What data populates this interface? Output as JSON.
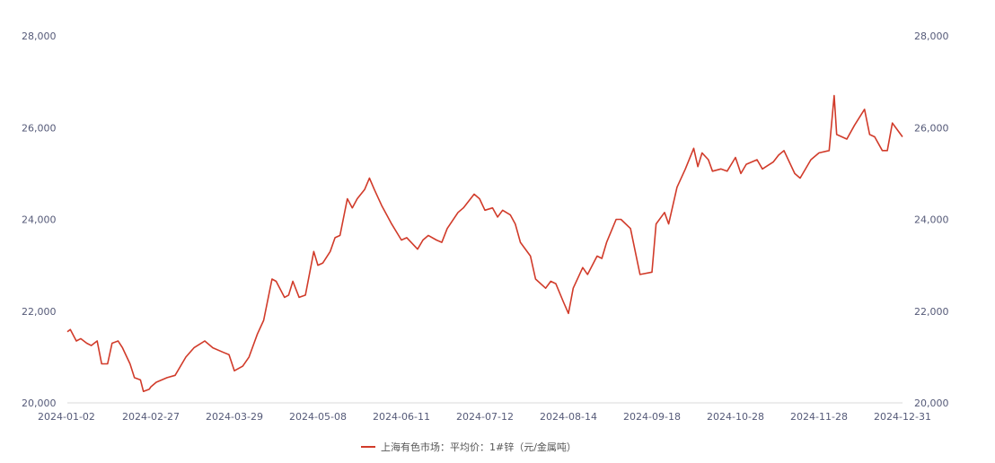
{
  "chart_data": {
    "type": "line",
    "title": "",
    "xlabel": "",
    "ylabel": "",
    "ylim": [
      20000,
      28000
    ],
    "y_ticks": [
      "20,000",
      "22,000",
      "24,000",
      "26,000",
      "28,000"
    ],
    "y2_ticks": [
      "20,000",
      "22,000",
      "24,000",
      "26,000",
      "28,000"
    ],
    "x_ticks": [
      "2024-01-02",
      "2024-02-27",
      "2024-03-29",
      "2024-05-08",
      "2024-06-11",
      "2024-07-12",
      "2024-08-14",
      "2024-09-18",
      "2024-10-28",
      "2024-11-28",
      "2024-12-31"
    ],
    "grid": false,
    "legend_position": "bottom-center",
    "colors": {
      "series": "#d13b2a",
      "axis_text": "#555a78"
    },
    "series": [
      {
        "name": "上海有色市场：平均价：1#锌（元/金属吨）",
        "points": [
          [
            "2024-01-02",
            21550
          ],
          [
            "2024-01-04",
            21600
          ],
          [
            "2024-01-08",
            21350
          ],
          [
            "2024-01-11",
            21400
          ],
          [
            "2024-01-15",
            21300
          ],
          [
            "2024-01-18",
            21250
          ],
          [
            "2024-01-22",
            21350
          ],
          [
            "2024-01-25",
            20850
          ],
          [
            "2024-01-29",
            20850
          ],
          [
            "2024-02-01",
            21300
          ],
          [
            "2024-02-05",
            21350
          ],
          [
            "2024-02-08",
            21200
          ],
          [
            "2024-02-13",
            20850
          ],
          [
            "2024-02-16",
            20550
          ],
          [
            "2024-02-20",
            20500
          ],
          [
            "2024-02-22",
            20250
          ],
          [
            "2024-02-26",
            20300
          ],
          [
            "2024-02-27",
            20350
          ],
          [
            "2024-02-29",
            20450
          ],
          [
            "2024-03-04",
            20550
          ],
          [
            "2024-03-07",
            20600
          ],
          [
            "2024-03-11",
            21000
          ],
          [
            "2024-03-14",
            21200
          ],
          [
            "2024-03-18",
            21350
          ],
          [
            "2024-03-21",
            21200
          ],
          [
            "2024-03-25",
            21100
          ],
          [
            "2024-03-27",
            21050
          ],
          [
            "2024-03-29",
            20700
          ],
          [
            "2024-04-02",
            20800
          ],
          [
            "2024-04-05",
            21000
          ],
          [
            "2024-04-09",
            21500
          ],
          [
            "2024-04-12",
            21800
          ],
          [
            "2024-04-16",
            22700
          ],
          [
            "2024-04-18",
            22650
          ],
          [
            "2024-04-22",
            22300
          ],
          [
            "2024-04-24",
            22350
          ],
          [
            "2024-04-26",
            22650
          ],
          [
            "2024-04-29",
            22300
          ],
          [
            "2024-05-02",
            22350
          ],
          [
            "2024-05-06",
            23300
          ],
          [
            "2024-05-08",
            23000
          ],
          [
            "2024-05-10",
            23050
          ],
          [
            "2024-05-13",
            23300
          ],
          [
            "2024-05-15",
            23600
          ],
          [
            "2024-05-17",
            23650
          ],
          [
            "2024-05-20",
            24450
          ],
          [
            "2024-05-22",
            24250
          ],
          [
            "2024-05-24",
            24450
          ],
          [
            "2024-05-27",
            24650
          ],
          [
            "2024-05-29",
            24900
          ],
          [
            "2024-05-31",
            24650
          ],
          [
            "2024-06-03",
            24300
          ],
          [
            "2024-06-05",
            24100
          ],
          [
            "2024-06-07",
            23900
          ],
          [
            "2024-06-11",
            23550
          ],
          [
            "2024-06-13",
            23600
          ],
          [
            "2024-06-17",
            23350
          ],
          [
            "2024-06-19",
            23550
          ],
          [
            "2024-06-21",
            23650
          ],
          [
            "2024-06-24",
            23550
          ],
          [
            "2024-06-26",
            23500
          ],
          [
            "2024-06-28",
            23800
          ],
          [
            "2024-07-02",
            24150
          ],
          [
            "2024-07-04",
            24250
          ],
          [
            "2024-07-08",
            24550
          ],
          [
            "2024-07-10",
            24450
          ],
          [
            "2024-07-12",
            24200
          ],
          [
            "2024-07-15",
            24250
          ],
          [
            "2024-07-17",
            24050
          ],
          [
            "2024-07-19",
            24200
          ],
          [
            "2024-07-22",
            24100
          ],
          [
            "2024-07-24",
            23900
          ],
          [
            "2024-07-26",
            23500
          ],
          [
            "2024-07-30",
            23200
          ],
          [
            "2024-08-01",
            22700
          ],
          [
            "2024-08-05",
            22500
          ],
          [
            "2024-08-07",
            22650
          ],
          [
            "2024-08-09",
            22600
          ],
          [
            "2024-08-12",
            22200
          ],
          [
            "2024-08-14",
            21950
          ],
          [
            "2024-08-16",
            22500
          ],
          [
            "2024-08-20",
            22950
          ],
          [
            "2024-08-22",
            22800
          ],
          [
            "2024-08-26",
            23200
          ],
          [
            "2024-08-28",
            23150
          ],
          [
            "2024-08-30",
            23500
          ],
          [
            "2024-09-03",
            24000
          ],
          [
            "2024-09-05",
            24000
          ],
          [
            "2024-09-09",
            23800
          ],
          [
            "2024-09-11",
            23300
          ],
          [
            "2024-09-13",
            22800
          ],
          [
            "2024-09-18",
            22850
          ],
          [
            "2024-09-20",
            23900
          ],
          [
            "2024-09-24",
            24150
          ],
          [
            "2024-09-26",
            23900
          ],
          [
            "2024-09-30",
            24700
          ],
          [
            "2024-10-04",
            25100
          ],
          [
            "2024-10-08",
            25550
          ],
          [
            "2024-10-10",
            25150
          ],
          [
            "2024-10-12",
            25450
          ],
          [
            "2024-10-15",
            25300
          ],
          [
            "2024-10-17",
            25050
          ],
          [
            "2024-10-21",
            25100
          ],
          [
            "2024-10-24",
            25050
          ],
          [
            "2024-10-28",
            25350
          ],
          [
            "2024-10-30",
            25000
          ],
          [
            "2024-11-01",
            25200
          ],
          [
            "2024-11-05",
            25300
          ],
          [
            "2024-11-07",
            25100
          ],
          [
            "2024-11-11",
            25250
          ],
          [
            "2024-11-13",
            25400
          ],
          [
            "2024-11-15",
            25500
          ],
          [
            "2024-11-19",
            25000
          ],
          [
            "2024-11-21",
            24900
          ],
          [
            "2024-11-25",
            25300
          ],
          [
            "2024-11-28",
            25450
          ],
          [
            "2024-12-02",
            25500
          ],
          [
            "2024-12-04",
            26700
          ],
          [
            "2024-12-05",
            25850
          ],
          [
            "2024-12-09",
            25750
          ],
          [
            "2024-12-12",
            26050
          ],
          [
            "2024-12-16",
            26400
          ],
          [
            "2024-12-18",
            25850
          ],
          [
            "2024-12-20",
            25800
          ],
          [
            "2024-12-23",
            25500
          ],
          [
            "2024-12-25",
            25500
          ],
          [
            "2024-12-27",
            26100
          ],
          [
            "2024-12-31",
            25800
          ]
        ]
      }
    ]
  }
}
